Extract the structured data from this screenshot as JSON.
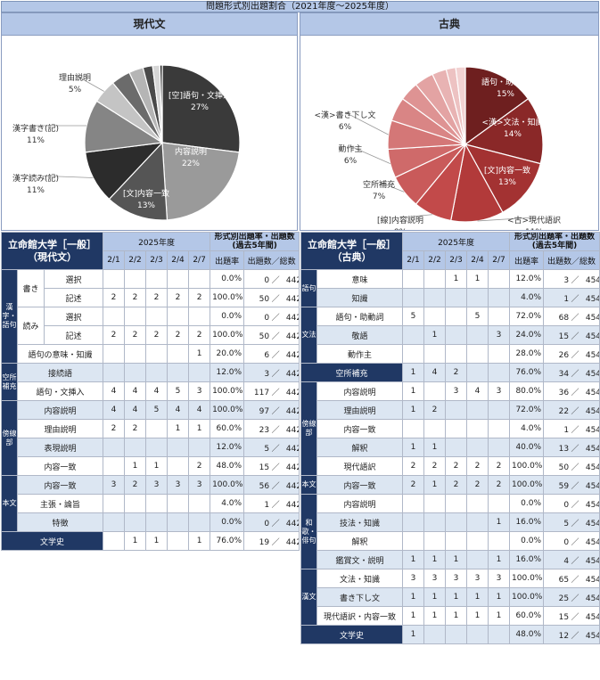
{
  "header_title": "問題形式別出題割合（2021年度～2025年度）",
  "chart_data": [
    {
      "type": "pie",
      "title": "現代文",
      "slices": [
        {
          "label": "[空]語句・文挿入",
          "value": 27,
          "pct": "27%",
          "color": "#3a3a3a"
        },
        {
          "label": "内容説明",
          "value": 22,
          "pct": "22%",
          "color": "#9a9a9a"
        },
        {
          "label": "[文]内容一致",
          "value": 13,
          "pct": "13%",
          "color": "#555555"
        },
        {
          "label": "漢字読み(記)",
          "value": 11,
          "pct": "11%",
          "color": "#2c2c2c"
        },
        {
          "label": "漢字書き(記)",
          "value": 11,
          "pct": "11%",
          "color": "#858585"
        },
        {
          "label": "理由説明",
          "value": 5,
          "pct": "5%",
          "color": "#c4c4c4"
        },
        {
          "label": "",
          "value": 4,
          "pct": "",
          "color": "#6b6b6b"
        },
        {
          "label": "",
          "value": 3,
          "pct": "",
          "color": "#b5b5b5"
        },
        {
          "label": "",
          "value": 2,
          "pct": "",
          "color": "#4a4a4a"
        },
        {
          "label": "",
          "value": 1.5,
          "pct": "",
          "color": "#d6d6d6"
        },
        {
          "label": "",
          "value": 0.5,
          "pct": "",
          "color": "#1e1e1e"
        }
      ]
    },
    {
      "type": "pie",
      "title": "古典",
      "slices": [
        {
          "label": "語句・助動詞",
          "value": 15,
          "pct": "15%",
          "color": "#6e1f1f"
        },
        {
          "label": "<漢>文法・知識",
          "value": 14,
          "pct": "14%",
          "color": "#8a2828"
        },
        {
          "label": "[文]内容一致",
          "value": 13,
          "pct": "13%",
          "color": "#a33232"
        },
        {
          "label": "<古>現代語訳",
          "value": 11,
          "pct": "11%",
          "color": "#b23a3a"
        },
        {
          "label": "[線]内容説明",
          "value": 8,
          "pct": "8%",
          "color": "#c24a4a"
        },
        {
          "label": "空所補充",
          "value": 7,
          "pct": "7%",
          "color": "#c95a5a"
        },
        {
          "label": "動作主",
          "value": 6,
          "pct": "6%",
          "color": "#cf6a6a"
        },
        {
          "label": "<漢>書き下し文",
          "value": 6,
          "pct": "6%",
          "color": "#d47777"
        },
        {
          "label": "",
          "value": 5,
          "pct": "",
          "color": "#d98585"
        },
        {
          "label": "",
          "value": 4,
          "pct": "",
          "color": "#de9393"
        },
        {
          "label": "",
          "value": 4,
          "pct": "",
          "color": "#e3a3a3"
        },
        {
          "label": "",
          "value": 3,
          "pct": "",
          "color": "#e8b3b3"
        },
        {
          "label": "",
          "value": 2,
          "pct": "",
          "color": "#edc2c2"
        },
        {
          "label": "",
          "value": 2,
          "pct": "",
          "color": "#f2d2d2"
        }
      ]
    }
  ],
  "tables": {
    "gendai": {
      "school": "立命館大学［一般］",
      "subject": "（現代文）",
      "year": "2025年度",
      "stat_header": "形式別出題率・出題数",
      "stat_sub": "(過去5年間)",
      "dates": [
        "2/1",
        "2/2",
        "2/3",
        "2/4",
        "2/7"
      ],
      "rate_header": "出題率",
      "count_header": "出題数／総数",
      "rows": [
        {
          "g1": "漢字・語句",
          "g1span": 5,
          "g2": "書き",
          "g2span": 2,
          "item": "選択",
          "v": [
            "",
            "",
            "",
            "",
            ""
          ],
          "rate": "0.0%",
          "n": "0",
          "total": "442"
        },
        {
          "item": "記述",
          "v": [
            "2",
            "2",
            "2",
            "2",
            "2"
          ],
          "rate": "100.0%",
          "n": "50",
          "total": "442"
        },
        {
          "g2": "読み",
          "g2span": 2,
          "item": "選択",
          "v": [
            "",
            "",
            "",
            "",
            ""
          ],
          "rate": "0.0%",
          "n": "0",
          "total": "442"
        },
        {
          "item": "記述",
          "v": [
            "2",
            "2",
            "2",
            "2",
            "2"
          ],
          "rate": "100.0%",
          "n": "50",
          "total": "442"
        },
        {
          "wide": "語句の意味・知識",
          "v": [
            "",
            "",
            "",
            "",
            "1"
          ],
          "rate": "20.0%",
          "n": "6",
          "total": "442"
        },
        {
          "g1": "空所補充",
          "g1span": 2,
          "wide": "接続語",
          "v": [
            "",
            "",
            "",
            "",
            ""
          ],
          "rate": "12.0%",
          "n": "3",
          "total": "442",
          "shade": true
        },
        {
          "wide": "語句・文挿入",
          "v": [
            "4",
            "4",
            "4",
            "5",
            "3"
          ],
          "rate": "100.0%",
          "n": "117",
          "total": "442"
        },
        {
          "g1": "傍線部",
          "g1span": 4,
          "wide": "内容説明",
          "v": [
            "4",
            "4",
            "5",
            "4",
            "4"
          ],
          "rate": "100.0%",
          "n": "97",
          "total": "442",
          "shade": true
        },
        {
          "wide": "理由説明",
          "v": [
            "2",
            "2",
            "",
            "1",
            "1"
          ],
          "rate": "60.0%",
          "n": "23",
          "total": "442"
        },
        {
          "wide": "表現説明",
          "v": [
            "",
            "",
            "",
            "",
            ""
          ],
          "rate": "12.0%",
          "n": "5",
          "total": "442",
          "shade": true
        },
        {
          "wide": "内容一致",
          "v": [
            "",
            "1",
            "1",
            "",
            "2"
          ],
          "rate": "48.0%",
          "n": "15",
          "total": "442"
        },
        {
          "g1": "本文",
          "g1span": 3,
          "wide": "内容一致",
          "v": [
            "3",
            "2",
            "3",
            "3",
            "3"
          ],
          "rate": "100.0%",
          "n": "56",
          "total": "442",
          "shade": true
        },
        {
          "wide": "主張・論旨",
          "v": [
            "",
            "",
            "",
            "",
            ""
          ],
          "rate": "4.0%",
          "n": "1",
          "total": "442"
        },
        {
          "wide": "特徴",
          "v": [
            "",
            "",
            "",
            "",
            ""
          ],
          "rate": "0.0%",
          "n": "0",
          "total": "442",
          "shade": true
        },
        {
          "full": "文学史",
          "v": [
            "",
            "1",
            "1",
            "",
            "1"
          ],
          "rate": "76.0%",
          "n": "19",
          "total": "442"
        }
      ]
    },
    "koten": {
      "school": "立命館大学［一般］",
      "subject": "（古典）",
      "year": "2025年度",
      "stat_header": "形式別出題率・出題数",
      "stat_sub": "(過去5年間)",
      "dates": [
        "2/1",
        "2/2",
        "2/3",
        "2/4",
        "2/7"
      ],
      "rate_header": "出題率",
      "count_header": "出題数／総数",
      "rows": [
        {
          "g1": "語句",
          "g1span": 2,
          "item": "意味",
          "v": [
            "",
            "",
            "1",
            "1",
            ""
          ],
          "rate": "12.0%",
          "n": "3",
          "total": "454"
        },
        {
          "item": "知識",
          "v": [
            "",
            "",
            "",
            "",
            ""
          ],
          "rate": "4.0%",
          "n": "1",
          "total": "454",
          "shade": true
        },
        {
          "g1": "文法",
          "g1span": 3,
          "item": "語句・助動詞",
          "v": [
            "5",
            "",
            "",
            "5",
            ""
          ],
          "rate": "72.0%",
          "n": "68",
          "total": "454"
        },
        {
          "item": "敬語",
          "v": [
            "",
            "1",
            "",
            "",
            "3"
          ],
          "rate": "24.0%",
          "n": "15",
          "total": "454",
          "shade": true
        },
        {
          "item": "動作主",
          "v": [
            "",
            "",
            "",
            "",
            ""
          ],
          "rate": "28.0%",
          "n": "26",
          "total": "454"
        },
        {
          "full": "空所補充",
          "v": [
            "1",
            "4",
            "2",
            "",
            ""
          ],
          "rate": "76.0%",
          "n": "34",
          "total": "454",
          "shade": true
        },
        {
          "g1": "傍線部",
          "g1span": 5,
          "item": "内容説明",
          "v": [
            "1",
            "",
            "3",
            "4",
            "3"
          ],
          "rate": "80.0%",
          "n": "36",
          "total": "454"
        },
        {
          "item": "理由説明",
          "v": [
            "1",
            "2",
            "",
            "",
            ""
          ],
          "rate": "72.0%",
          "n": "22",
          "total": "454",
          "shade": true
        },
        {
          "item": "内容一致",
          "v": [
            "",
            "",
            "",
            "",
            ""
          ],
          "rate": "4.0%",
          "n": "1",
          "total": "454"
        },
        {
          "item": "解釈",
          "v": [
            "1",
            "1",
            "",
            "",
            ""
          ],
          "rate": "40.0%",
          "n": "13",
          "total": "454",
          "shade": true
        },
        {
          "item": "現代語訳",
          "v": [
            "2",
            "2",
            "2",
            "2",
            "2"
          ],
          "rate": "100.0%",
          "n": "50",
          "total": "454"
        },
        {
          "g1": "本文",
          "g1span": 1,
          "item": "内容一致",
          "v": [
            "2",
            "1",
            "2",
            "2",
            "2"
          ],
          "rate": "100.0%",
          "n": "59",
          "total": "454",
          "shade": true
        },
        {
          "g1": "和歌・俳句",
          "g1span": 4,
          "item": "内容説明",
          "v": [
            "",
            "",
            "",
            "",
            ""
          ],
          "rate": "0.0%",
          "n": "0",
          "total": "454"
        },
        {
          "item": "技法・知識",
          "v": [
            "",
            "",
            "",
            "",
            "1"
          ],
          "rate": "16.0%",
          "n": "5",
          "total": "454",
          "shade": true
        },
        {
          "item": "解釈",
          "v": [
            "",
            "",
            "",
            "",
            ""
          ],
          "rate": "0.0%",
          "n": "0",
          "total": "454"
        },
        {
          "item": "鑑賞文・説明",
          "v": [
            "1",
            "1",
            "1",
            "",
            "1"
          ],
          "rate": "16.0%",
          "n": "4",
          "total": "454",
          "shade": true
        },
        {
          "g1": "漢文",
          "g1span": 3,
          "item": "文法・知識",
          "v": [
            "3",
            "3",
            "3",
            "3",
            "3"
          ],
          "rate": "100.0%",
          "n": "65",
          "total": "454"
        },
        {
          "item": "書き下し文",
          "v": [
            "1",
            "1",
            "1",
            "1",
            "1"
          ],
          "rate": "100.0%",
          "n": "25",
          "total": "454",
          "shade": true
        },
        {
          "item": "現代語訳・内容一致",
          "v": [
            "1",
            "1",
            "1",
            "1",
            "1"
          ],
          "rate": "60.0%",
          "n": "15",
          "total": "454"
        },
        {
          "full": "文学史",
          "v": [
            "1",
            "",
            "",
            "",
            ""
          ],
          "rate": "48.0%",
          "n": "12",
          "total": "454",
          "shade": true
        }
      ]
    }
  }
}
